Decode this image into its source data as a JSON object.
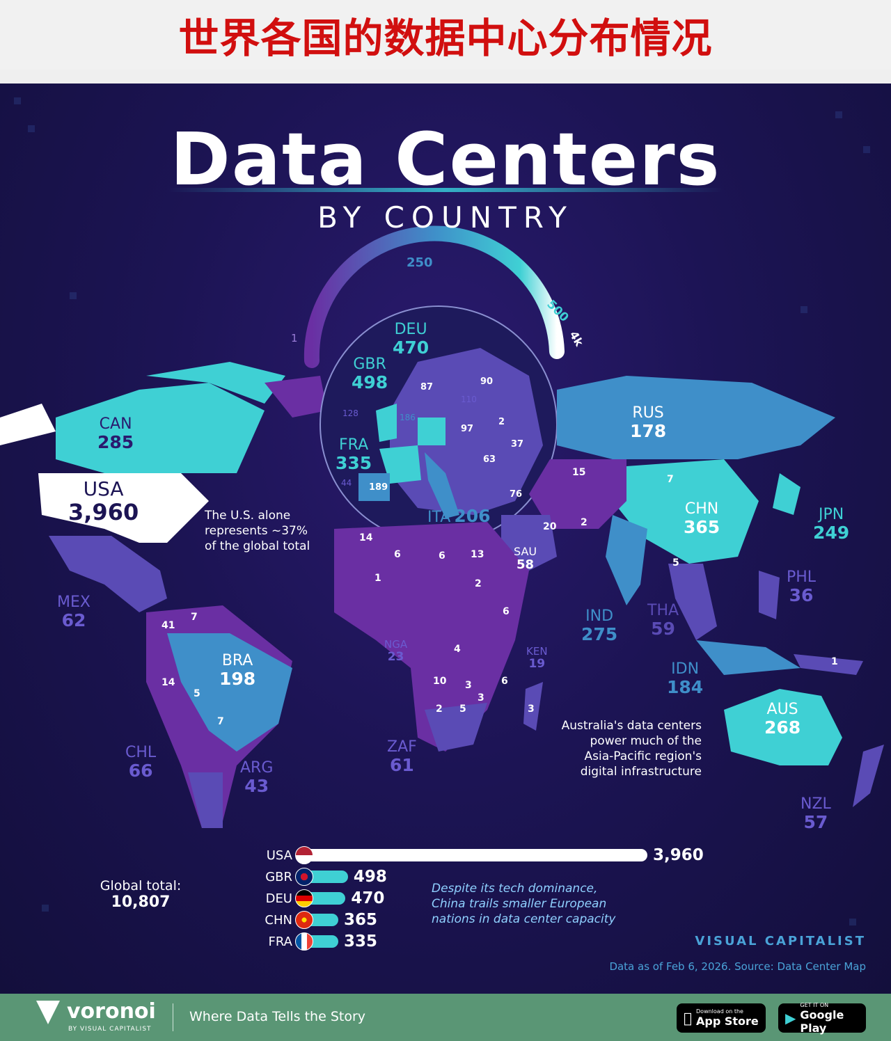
{
  "banner_title": "世界各国的数据中心分布情况",
  "title": "Data Centers",
  "subtitle": "BY COUNTRY",
  "scale": {
    "labels": [
      "1",
      "250",
      "500",
      "4k"
    ]
  },
  "colors": {
    "high": "#3fd0d4",
    "mid": "#3f8fc9",
    "low": "#5a4bb5",
    "lowest": "#6a2fa3",
    "background": "#1c1454"
  },
  "countries": [
    {
      "code": "CAN",
      "value": "285"
    },
    {
      "code": "USA",
      "value": "3,960"
    },
    {
      "code": "MEX",
      "value": "62"
    },
    {
      "code": "BRA",
      "value": "198"
    },
    {
      "code": "CHL",
      "value": "66"
    },
    {
      "code": "ARG",
      "value": "43"
    },
    {
      "code": "DEU",
      "value": "470"
    },
    {
      "code": "GBR",
      "value": "498"
    },
    {
      "code": "FRA",
      "value": "335"
    },
    {
      "code": "ITA",
      "value": "206"
    },
    {
      "code": "RUS",
      "value": "178"
    },
    {
      "code": "CHN",
      "value": "365"
    },
    {
      "code": "JPN",
      "value": "249"
    },
    {
      "code": "PHL",
      "value": "36"
    },
    {
      "code": "IND",
      "value": "275"
    },
    {
      "code": "THA",
      "value": "59"
    },
    {
      "code": "IDN",
      "value": "184"
    },
    {
      "code": "SAU",
      "value": "58"
    },
    {
      "code": "NGA",
      "value": "23"
    },
    {
      "code": "KEN",
      "value": "19"
    },
    {
      "code": "ZAF",
      "value": "61"
    },
    {
      "code": "AUS",
      "value": "268"
    },
    {
      "code": "NZL",
      "value": "57"
    }
  ],
  "small_values": {
    "europe": [
      "87",
      "90",
      "110",
      "128",
      "186",
      "97",
      "2",
      "37",
      "63",
      "44",
      "189",
      "76"
    ],
    "asia": [
      "15",
      "7",
      "20",
      "2",
      "5"
    ],
    "africa": [
      "14",
      "6",
      "6",
      "13",
      "1",
      "2",
      "6",
      "4",
      "10",
      "3",
      "3",
      "6",
      "2",
      "5",
      "3"
    ],
    "south_america": [
      "7",
      "41",
      "14",
      "5",
      "7"
    ],
    "oceania": [
      "1"
    ]
  },
  "notes": {
    "usa": [
      "The U.S. alone",
      "represents ~37%",
      "of the global total"
    ],
    "australia": [
      "Australia's data centers",
      "power much of the",
      "Asia-Pacific region's",
      "digital infrastructure"
    ],
    "china": [
      "Despite its tech dominance,",
      "China trails smaller European",
      "nations in data center capacity"
    ]
  },
  "global_total": {
    "label": "Global total:",
    "value": "10,807"
  },
  "chart_data": {
    "type": "bar",
    "categories": [
      "USA",
      "GBR",
      "DEU",
      "CHN",
      "FRA"
    ],
    "values": [
      3960,
      498,
      470,
      365,
      335
    ],
    "labels": [
      "3,960",
      "498",
      "470",
      "365",
      "335"
    ]
  },
  "brand": {
    "name": "VISUAL CAPITALIST",
    "source_prefix": "Data as of Feb 6, 2026. Source:",
    "source_name": "Data Center Map"
  },
  "footer": {
    "logo": "voronoi",
    "logo_sub": "BY VISUAL CAPITALIST",
    "tagline": "Where Data Tells the Story",
    "appstore_small": "Download on the",
    "appstore_big": "App Store",
    "gplay_small": "GET IT ON",
    "gplay_big": "Google Play"
  }
}
